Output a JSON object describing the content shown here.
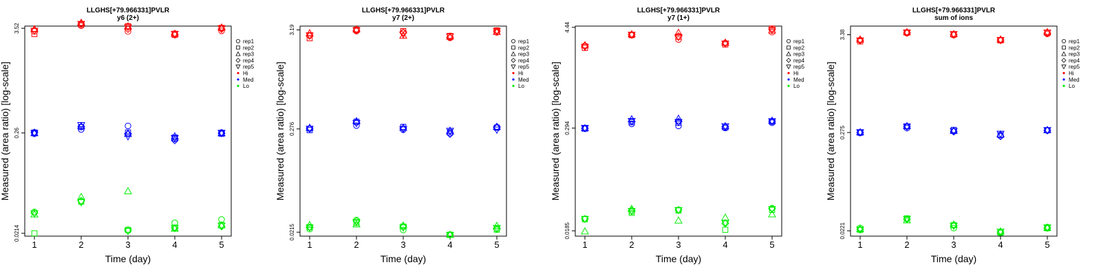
{
  "colors": {
    "Hi": "#ff0000",
    "Med": "#0000ff",
    "Lo": "#00ee00",
    "axis": "#000000"
  },
  "chart_data": [
    {
      "type": "scatter",
      "title": "LLGHS[+79.966331]PVLR",
      "subtitle": "y6 (2+)",
      "xlabel": "Time (day)",
      "ylabel": "Measured (area ratio) [log-scale]",
      "x": [
        1,
        2,
        3,
        4,
        5
      ],
      "ylim_log10": [
        -1.7,
        0.57
      ],
      "yticks": [
        {
          "label": "3.52",
          "value": 3.52
        },
        {
          "label": "0.26",
          "value": 0.26
        },
        {
          "label": "0.0214",
          "value": 0.0214
        }
      ],
      "legend": [
        "rep1",
        "rep2",
        "rep3",
        "rep4",
        "rep5",
        "Hi",
        "Med",
        "Lo"
      ],
      "series": [
        {
          "name": "Hi",
          "color": "#ff0000",
          "reps": [
            [
              3.25,
              3.75,
              3.25,
              3.08,
              3.3
            ],
            [
              3.05,
              3.85,
              3.7,
              2.98,
              3.55
            ],
            [
              3.45,
              4.05,
              3.7,
              3.08,
              3.6
            ],
            [
              3.35,
              3.9,
              3.45,
              3.0,
              3.45
            ],
            [
              3.3,
              3.9,
              3.6,
              3.05,
              3.5
            ]
          ]
        },
        {
          "name": "Med",
          "color": "#0000ff",
          "reps": [
            [
              0.255,
              0.284,
              0.31,
              0.223,
              0.263
            ],
            [
              0.263,
              0.301,
              0.263,
              0.232,
              0.255
            ],
            [
              0.26,
              0.31,
              0.255,
              0.24,
              0.26
            ],
            [
              0.263,
              0.304,
              0.255,
              0.216,
              0.258
            ],
            [
              0.258,
              0.315,
              0.238,
              0.228,
              0.26
            ]
          ]
        },
        {
          "name": "Lo",
          "color": "#00ee00",
          "reps": [
            [
              0.0365,
              0.0478,
              0.0234,
              0.0278,
              0.0302
            ],
            [
              0.0214,
              0.047,
              0.0233,
              0.0246,
              0.0262
            ],
            [
              0.0344,
              0.053,
              0.0612,
              0.0241,
              0.0262
            ],
            [
              0.0355,
              0.048,
              0.0228,
              0.0244,
              0.0254
            ],
            [
              0.035,
              0.0462,
              0.0226,
              0.0244,
              0.0257
            ]
          ]
        }
      ]
    },
    {
      "type": "scatter",
      "title": "LLGHS[+79.966331]PVLR",
      "subtitle": "y7 (2+)",
      "xlabel": "Time (day)",
      "ylabel": "Measured (area ratio) [log-scale]",
      "x": [
        1,
        2,
        3,
        4,
        5
      ],
      "ylim_log10": [
        -1.71,
        0.545
      ],
      "yticks": [
        {
          "label": "3.19",
          "value": 3.19
        },
        {
          "label": "0.276",
          "value": 0.276
        },
        {
          "label": "0.0215",
          "value": 0.0215
        }
      ],
      "legend": [
        "rep1",
        "rep2",
        "rep3",
        "rep4",
        "rep5",
        "Hi",
        "Med",
        "Lo"
      ],
      "series": [
        {
          "name": "Hi",
          "color": "#ff0000",
          "reps": [
            [
              2.8,
              3.1,
              3.0,
              2.62,
              3.0
            ],
            [
              2.6,
              3.2,
              3.1,
              2.75,
              3.15
            ],
            [
              2.95,
              3.25,
              2.78,
              2.72,
              3.05
            ],
            [
              2.75,
              3.15,
              2.98,
              2.66,
              3.1
            ],
            [
              2.78,
              3.15,
              2.85,
              2.7,
              3.08
            ]
          ]
        },
        {
          "name": "Med",
          "color": "#0000ff",
          "reps": [
            [
              0.278,
              0.3,
              0.271,
              0.248,
              0.288
            ],
            [
              0.268,
              0.33,
              0.29,
              0.255,
              0.285
            ],
            [
              0.285,
              0.335,
              0.285,
              0.265,
              0.292
            ],
            [
              0.28,
              0.322,
              0.28,
              0.243,
              0.29
            ],
            [
              0.276,
              0.318,
              0.274,
              0.262,
              0.27
            ]
          ]
        },
        {
          "name": "Lo",
          "color": "#00ee00",
          "reps": [
            [
              0.0232,
              0.029,
              0.0227,
              0.0201,
              0.0234
            ],
            [
              0.0243,
              0.027,
              0.0247,
              0.0202,
              0.0229
            ],
            [
              0.0258,
              0.0262,
              0.0254,
              0.0202,
              0.0252
            ],
            [
              0.0242,
              0.0283,
              0.0245,
              0.0202,
              0.0232
            ],
            [
              0.024,
              0.0275,
              0.024,
              0.02,
              0.0238
            ]
          ]
        }
      ]
    },
    {
      "type": "scatter",
      "title": "LLGHS[+79.966331]PVLR",
      "subtitle": "y7 (1+)",
      "xlabel": "Time (day)",
      "ylabel": "Measured (area ratio) [log-scale]",
      "x": [
        1,
        2,
        3,
        4,
        5
      ],
      "ylim_log10": [
        -1.795,
        0.662
      ],
      "yticks": [
        {
          "label": "4.44",
          "value": 4.44
        },
        {
          "label": "0.294",
          "value": 0.294
        },
        {
          "label": "0.0185",
          "value": 0.0185
        }
      ],
      "legend": [
        "rep1",
        "rep2",
        "rep3",
        "rep4",
        "rep5",
        "Hi",
        "Med",
        "Lo"
      ],
      "series": [
        {
          "name": "Hi",
          "color": "#ff0000",
          "reps": [
            [
              2.7,
              3.6,
              3.2,
              2.9,
              3.9
            ],
            [
              2.55,
              3.6,
              3.45,
              2.8,
              4.3
            ],
            [
              2.75,
              3.7,
              3.85,
              2.95,
              4.1
            ],
            [
              2.68,
              3.65,
              3.5,
              2.88,
              4.2
            ],
            [
              2.62,
              3.62,
              3.4,
              2.85,
              4.1
            ]
          ]
        },
        {
          "name": "Med",
          "color": "#0000ff",
          "reps": [
            [
              0.293,
              0.33,
              0.312,
              0.295,
              0.34
            ],
            [
              0.29,
              0.345,
              0.34,
              0.3,
              0.35
            ],
            [
              0.295,
              0.375,
              0.38,
              0.31,
              0.36
            ],
            [
              0.292,
              0.35,
              0.35,
              0.305,
              0.355
            ],
            [
              0.294,
              0.355,
              0.345,
              0.308,
              0.352
            ]
          ]
        },
        {
          "name": "Lo",
          "color": "#00ee00",
          "reps": [
            [
              0.0255,
              0.031,
              0.0324,
              0.023,
              0.034
            ],
            [
              0.0253,
              0.03,
              0.032,
              0.019,
              0.0325
            ],
            [
              0.0183,
              0.0335,
              0.0245,
              0.0265,
              0.029
            ],
            [
              0.0255,
              0.032,
              0.0325,
              0.0225,
              0.0335
            ],
            [
              0.0254,
              0.0315,
              0.0322,
              0.0228,
              0.033
            ]
          ]
        }
      ]
    },
    {
      "type": "scatter",
      "title": "LLGHS[+79.966331]PVLR",
      "subtitle": "sum of ions",
      "xlabel": "Time (day)",
      "ylabel": "Measured (area ratio) [log-scale]",
      "x": [
        1,
        2,
        3,
        4,
        5
      ],
      "ylim_log10": [
        -1.715,
        0.625
      ],
      "yticks": [
        {
          "label": "3.38",
          "value": 3.38
        },
        {
          "label": "0.275",
          "value": 0.275
        },
        {
          "label": "0.0221",
          "value": 0.0221
        }
      ],
      "legend": [
        "rep1",
        "rep2",
        "rep3",
        "rep4",
        "rep5",
        "Hi",
        "Med",
        "Lo"
      ],
      "series": [
        {
          "name": "Hi",
          "color": "#ff0000",
          "reps": [
            [
              2.95,
              3.52,
              3.35,
              2.95,
              3.45
            ],
            [
              2.85,
              3.58,
              3.4,
              2.92,
              3.55
            ],
            [
              3.0,
              3.62,
              3.45,
              3.0,
              3.62
            ],
            [
              2.92,
              3.55,
              3.38,
              2.95,
              3.52
            ],
            [
              2.9,
              3.55,
              3.42,
              2.93,
              3.55
            ]
          ]
        },
        {
          "name": "Med",
          "color": "#0000ff",
          "reps": [
            [
              0.272,
              0.308,
              0.283,
              0.252,
              0.289
            ],
            [
              0.274,
              0.322,
              0.294,
              0.258,
              0.292
            ],
            [
              0.278,
              0.325,
              0.288,
              0.262,
              0.294
            ],
            [
              0.275,
              0.32,
              0.282,
              0.25,
              0.29
            ],
            [
              0.276,
              0.318,
              0.284,
              0.265,
              0.291
            ]
          ]
        },
        {
          "name": "Lo",
          "color": "#00ee00",
          "reps": [
            [
              0.0238,
              0.03,
              0.0237,
              0.0213,
              0.0243
            ],
            [
              0.0226,
              0.0304,
              0.0256,
              0.021,
              0.0236
            ],
            [
              0.0232,
              0.029,
              0.026,
              0.0218,
              0.024
            ],
            [
              0.023,
              0.0296,
              0.0252,
              0.0214,
              0.0238
            ],
            [
              0.0228,
              0.0298,
              0.025,
              0.0215,
              0.024
            ]
          ]
        }
      ]
    }
  ]
}
